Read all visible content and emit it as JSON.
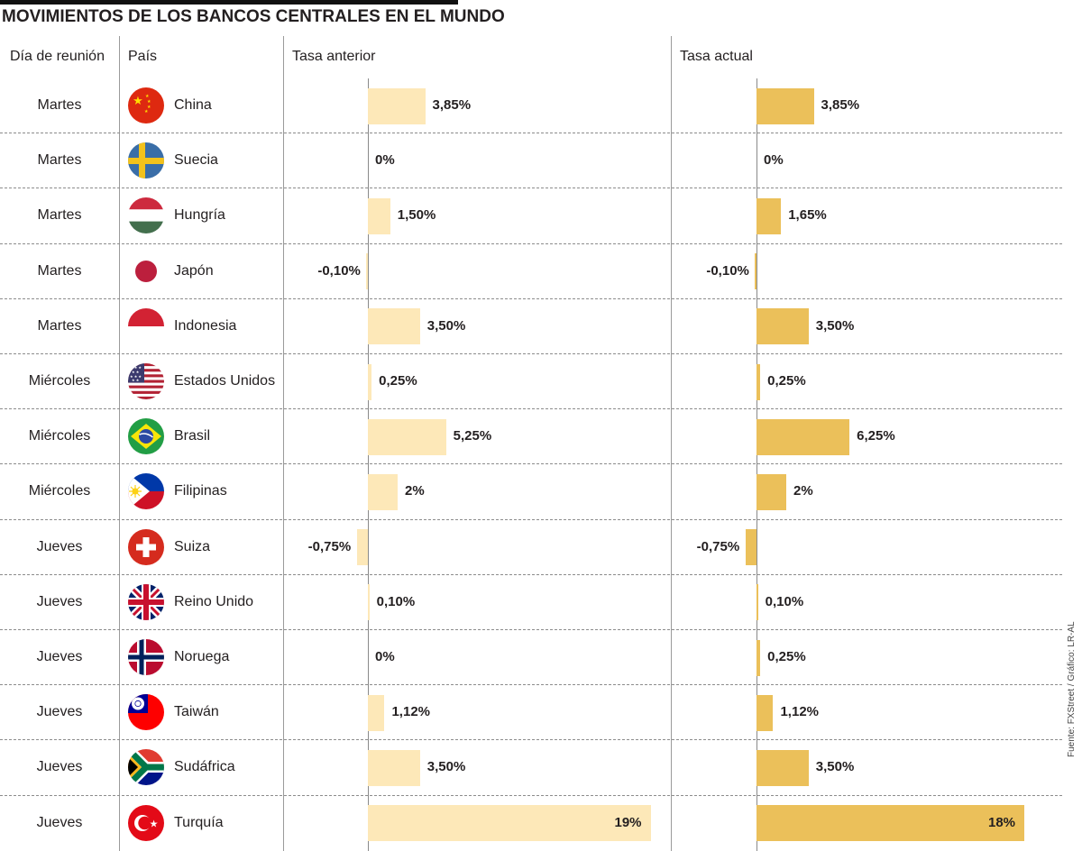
{
  "title": "MOVIMIENTOS DE LOS BANCOS CENTRALES EN EL MUNDO",
  "headers": {
    "day": "Día de reunión",
    "country": "País",
    "prev": "Tasa anterior",
    "curr": "Tasa actual"
  },
  "source": "Fuente: FXStreet / Gráfico: LR-AL",
  "colors": {
    "prev_bar": "#fde8b8",
    "curr_bar": "#ebc05a",
    "rule": "#8c8c8c"
  },
  "chart_data": {
    "type": "bar",
    "orientation": "horizontal",
    "title": "MOVIMIENTOS DE LOS BANCOS CENTRALES EN EL MUNDO",
    "categories": [
      "China",
      "Suecia",
      "Hungría",
      "Japón",
      "Indonesia",
      "Estados Unidos",
      "Brasil",
      "Filipinas",
      "Suiza",
      "Reino Unido",
      "Noruega",
      "Taiwán",
      "Sudáfrica",
      "Turquía"
    ],
    "series": [
      {
        "name": "Tasa anterior",
        "values": [
          3.85,
          0,
          1.5,
          -0.1,
          3.5,
          0.25,
          5.25,
          2,
          -0.75,
          0.1,
          0,
          1.12,
          3.5,
          19
        ]
      },
      {
        "name": "Tasa actual",
        "values": [
          3.85,
          0,
          1.65,
          -0.1,
          3.5,
          0.25,
          6.25,
          2,
          -0.75,
          0.1,
          0.25,
          1.12,
          3.5,
          18
        ]
      }
    ],
    "unit": "%"
  },
  "rows": [
    {
      "day": "Martes",
      "country": "China",
      "flag": "china-flag-icon",
      "prev": 3.85,
      "prev_label": "3,85%",
      "curr": 3.85,
      "curr_label": "3,85%"
    },
    {
      "day": "Martes",
      "country": "Suecia",
      "flag": "sweden-flag-icon",
      "prev": 0,
      "prev_label": "0%",
      "curr": 0,
      "curr_label": "0%"
    },
    {
      "day": "Martes",
      "country": "Hungría",
      "flag": "hungary-flag-icon",
      "prev": 1.5,
      "prev_label": "1,50%",
      "curr": 1.65,
      "curr_label": "1,65%"
    },
    {
      "day": "Martes",
      "country": "Japón",
      "flag": "japan-flag-icon",
      "prev": -0.1,
      "prev_label": "-0,10%",
      "curr": -0.1,
      "curr_label": "-0,10%"
    },
    {
      "day": "Martes",
      "country": "Indonesia",
      "flag": "indonesia-flag-icon",
      "prev": 3.5,
      "prev_label": "3,50%",
      "curr": 3.5,
      "curr_label": "3,50%"
    },
    {
      "day": "Miércoles",
      "country": "Estados Unidos",
      "flag": "usa-flag-icon",
      "prev": 0.25,
      "prev_label": "0,25%",
      "curr": 0.25,
      "curr_label": "0,25%"
    },
    {
      "day": "Miércoles",
      "country": "Brasil",
      "flag": "brazil-flag-icon",
      "prev": 5.25,
      "prev_label": "5,25%",
      "curr": 6.25,
      "curr_label": "6,25%"
    },
    {
      "day": "Miércoles",
      "country": "Filipinas",
      "flag": "philippines-flag-icon",
      "prev": 2,
      "prev_label": "2%",
      "curr": 2,
      "curr_label": "2%"
    },
    {
      "day": "Jueves",
      "country": "Suiza",
      "flag": "switzerland-flag-icon",
      "prev": -0.75,
      "prev_label": "-0,75%",
      "curr": -0.75,
      "curr_label": "-0,75%"
    },
    {
      "day": "Jueves",
      "country": "Reino Unido",
      "flag": "uk-flag-icon",
      "prev": 0.1,
      "prev_label": "0,10%",
      "curr": 0.1,
      "curr_label": "0,10%"
    },
    {
      "day": "Jueves",
      "country": "Noruega",
      "flag": "norway-flag-icon",
      "prev": 0,
      "prev_label": "0%",
      "curr": 0.25,
      "curr_label": "0,25%"
    },
    {
      "day": "Jueves",
      "country": "Taiwán",
      "flag": "taiwan-flag-icon",
      "prev": 1.12,
      "prev_label": "1,12%",
      "curr": 1.12,
      "curr_label": "1,12%"
    },
    {
      "day": "Jueves",
      "country": "Sudáfrica",
      "flag": "south-africa-flag-icon",
      "prev": 3.5,
      "prev_label": "3,50%",
      "curr": 3.5,
      "curr_label": "3,50%"
    },
    {
      "day": "Jueves",
      "country": "Turquía",
      "flag": "turkey-flag-icon",
      "prev": 19,
      "prev_label": "19%",
      "curr": 18,
      "curr_label": "18%"
    }
  ]
}
